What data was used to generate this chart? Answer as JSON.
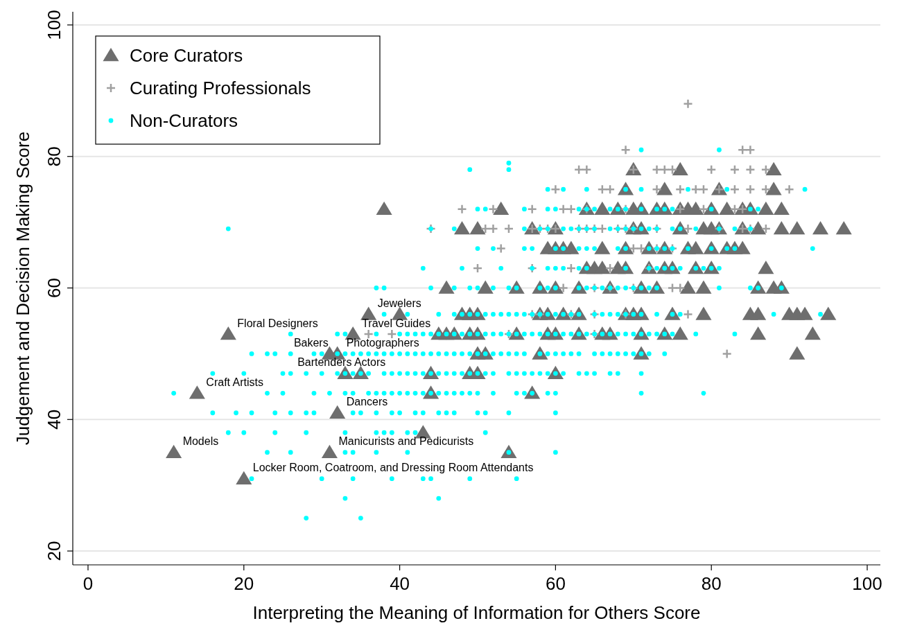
{
  "chart_data": {
    "type": "scatter",
    "xlabel": "Interpreting the Meaning of Information for Others Score",
    "ylabel": "Judgement and Decision Making Score",
    "xlim": [
      -2,
      102
    ],
    "ylim": [
      18,
      102
    ],
    "xticks": [
      0,
      20,
      40,
      60,
      80,
      100
    ],
    "yticks": [
      20,
      40,
      60,
      80,
      100
    ],
    "grid": "y",
    "legend": "top left",
    "series": [
      {
        "name": "Core Curators",
        "color": "#6e6e6e",
        "marker": "triangle",
        "x": [
          11,
          14,
          18,
          20,
          31,
          32,
          31,
          32,
          33,
          35,
          34,
          36,
          40,
          38,
          43,
          54,
          44,
          44,
          57,
          49,
          50,
          60,
          50,
          51,
          58,
          71,
          91,
          45,
          46,
          47,
          49,
          50,
          55,
          59,
          60,
          63,
          66,
          67,
          71,
          74,
          76,
          86,
          93,
          48,
          49,
          50,
          58,
          59,
          61,
          63,
          69,
          70,
          71,
          75,
          79,
          85,
          86,
          90,
          91,
          92,
          95,
          46,
          51,
          55,
          58,
          60,
          63,
          67,
          71,
          73,
          77,
          79,
          86,
          88,
          89,
          64,
          65,
          66,
          68,
          69,
          72,
          74,
          75,
          78,
          80,
          87,
          59,
          60,
          61,
          62,
          66,
          69,
          72,
          74,
          77,
          78,
          80,
          82,
          83,
          84,
          48,
          50,
          57,
          60,
          70,
          71,
          76,
          79,
          80,
          81,
          84,
          86,
          89,
          91,
          94,
          97,
          53,
          64,
          66,
          68,
          70,
          71,
          73,
          74,
          76,
          77,
          78,
          80,
          82,
          84,
          85,
          87,
          89,
          69,
          74,
          81,
          88,
          70,
          76,
          88
        ],
        "values": [
          35,
          44,
          53,
          31,
          35,
          41,
          50,
          50,
          47,
          47,
          53,
          56,
          56,
          72,
          38,
          35,
          44,
          47,
          44,
          47,
          47,
          47,
          50,
          50,
          50,
          50,
          50,
          53,
          53,
          53,
          53,
          53,
          53,
          53,
          53,
          53,
          53,
          53,
          53,
          53,
          53,
          53,
          53,
          56,
          56,
          56,
          56,
          56,
          56,
          56,
          56,
          56,
          56,
          56,
          56,
          56,
          56,
          56,
          56,
          56,
          56,
          60,
          60,
          60,
          60,
          60,
          60,
          60,
          60,
          60,
          60,
          60,
          60,
          60,
          60,
          63,
          63,
          63,
          63,
          63,
          63,
          63,
          63,
          63,
          63,
          63,
          66,
          66,
          66,
          66,
          66,
          66,
          66,
          66,
          66,
          66,
          66,
          66,
          66,
          66,
          69,
          69,
          69,
          69,
          69,
          69,
          69,
          69,
          69,
          69,
          69,
          69,
          69,
          69,
          69,
          69,
          72,
          72,
          72,
          72,
          72,
          72,
          72,
          72,
          72,
          72,
          72,
          72,
          72,
          72,
          72,
          72,
          72,
          75,
          75,
          75,
          75,
          78,
          78,
          78
        ]
      },
      {
        "name": "Curating Professionals",
        "color": "#a0a0a0",
        "marker": "cross",
        "x": [
          77,
          69,
          84,
          85,
          63,
          64,
          70,
          73,
          74,
          75,
          80,
          83,
          85,
          87,
          60,
          66,
          67,
          73,
          76,
          78,
          79,
          81,
          83,
          85,
          87,
          90,
          48,
          52,
          57,
          61,
          62,
          64,
          69,
          76,
          79,
          83,
          84,
          44,
          51,
          52,
          54,
          57,
          58,
          59,
          60,
          63,
          64,
          65,
          66,
          68,
          69,
          70,
          73,
          77,
          81,
          84,
          85,
          87,
          53,
          70,
          71,
          73,
          75,
          50,
          57,
          62,
          67,
          72,
          61,
          65,
          67,
          70,
          75,
          76,
          57,
          58,
          62,
          65,
          69,
          77,
          36,
          39,
          54,
          65,
          82
        ],
        "values": [
          88,
          81,
          81,
          81,
          78,
          78,
          78,
          78,
          78,
          78,
          78,
          78,
          78,
          78,
          75,
          75,
          75,
          75,
          75,
          75,
          75,
          75,
          75,
          75,
          75,
          75,
          72,
          72,
          72,
          72,
          72,
          72,
          72,
          72,
          72,
          72,
          72,
          69,
          69,
          69,
          69,
          69,
          69,
          69,
          69,
          69,
          69,
          69,
          69,
          69,
          69,
          69,
          69,
          69,
          69,
          69,
          69,
          69,
          66,
          66,
          66,
          66,
          66,
          63,
          63,
          63,
          63,
          63,
          60,
          60,
          60,
          60,
          60,
          60,
          56,
          56,
          56,
          56,
          56,
          56,
          53,
          53,
          53,
          53,
          50
        ]
      },
      {
        "name": "Non-Curators",
        "color": "#00ffff",
        "marker": "circle",
        "x": [
          71,
          81,
          54,
          49,
          54,
          59,
          61,
          64,
          69,
          71,
          77,
          82,
          92,
          50,
          51,
          56,
          59,
          60,
          63,
          64,
          65,
          67,
          68,
          69,
          71,
          73,
          74,
          75,
          80,
          85,
          86,
          18,
          44,
          47,
          56,
          58,
          59,
          61,
          62,
          63,
          64,
          65,
          67,
          68,
          69,
          70,
          71,
          72,
          73,
          75,
          76,
          78,
          81,
          83,
          85,
          50,
          52,
          56,
          57,
          60,
          61,
          63,
          64,
          65,
          68,
          69,
          72,
          73,
          74,
          75,
          77,
          80,
          82,
          83,
          93,
          43,
          48,
          53,
          57,
          59,
          60,
          61,
          63,
          64,
          69,
          72,
          73,
          74,
          75,
          76,
          78,
          79,
          80,
          81,
          37,
          38,
          44,
          47,
          49,
          50,
          52,
          54,
          55,
          58,
          59,
          60,
          63,
          64,
          65,
          66,
          67,
          68,
          69,
          70,
          71,
          72,
          73,
          81,
          85,
          86,
          89,
          38,
          41,
          45,
          47,
          48,
          49,
          50,
          51,
          52,
          53,
          54,
          55,
          56,
          57,
          58,
          59,
          60,
          61,
          62,
          63,
          65,
          66,
          67,
          68,
          69,
          70,
          71,
          73,
          75,
          76,
          88,
          94,
          26,
          32,
          33,
          37,
          40,
          41,
          42,
          43,
          44,
          45,
          46,
          47,
          48,
          49,
          50,
          51,
          52,
          53,
          54,
          55,
          56,
          57,
          58,
          59,
          60,
          61,
          62,
          63,
          64,
          65,
          66,
          67,
          68,
          69,
          70,
          71,
          72,
          73,
          74,
          75,
          78,
          83,
          21,
          23,
          24,
          26,
          29,
          30,
          32,
          33,
          34,
          35,
          36,
          37,
          38,
          39,
          40,
          41,
          42,
          43,
          44,
          45,
          46,
          47,
          48,
          49,
          50,
          51,
          52,
          53,
          54,
          55,
          56,
          58,
          59,
          60,
          61,
          62,
          63,
          65,
          66,
          67,
          68,
          69,
          70,
          71,
          72,
          74,
          16,
          20,
          25,
          26,
          28,
          30,
          32,
          33,
          34,
          35,
          36,
          38,
          39,
          40,
          41,
          42,
          43,
          44,
          45,
          46,
          47,
          48,
          49,
          50,
          51,
          52,
          54,
          55,
          56,
          57,
          58,
          59,
          60,
          61,
          63,
          64,
          65,
          67,
          68,
          71,
          11,
          23,
          25,
          29,
          31,
          33,
          34,
          36,
          37,
          38,
          39,
          40,
          41,
          42,
          43,
          44,
          45,
          46,
          47,
          48,
          49,
          50,
          52,
          55,
          56,
          57,
          59,
          60,
          71,
          79,
          16,
          19,
          21,
          24,
          26,
          28,
          29,
          34,
          35,
          37,
          39,
          40,
          42,
          43,
          45,
          46,
          47,
          50,
          51,
          54,
          60,
          18,
          20,
          24,
          28,
          33,
          37,
          38,
          39,
          41,
          42,
          51,
          23,
          26,
          33,
          34,
          37,
          41,
          54,
          60,
          21,
          30,
          34,
          39,
          43,
          44,
          49,
          55,
          33,
          45,
          28,
          35
        ],
        "values": [
          81,
          81,
          79,
          78,
          78,
          75,
          75,
          75,
          75,
          75,
          75,
          75,
          75,
          72,
          72,
          72,
          72,
          72,
          72,
          72,
          72,
          72,
          72,
          72,
          72,
          72,
          72,
          72,
          72,
          72,
          72,
          69,
          69,
          69,
          69,
          69,
          69,
          69,
          69,
          69,
          69,
          69,
          69,
          69,
          69,
          69,
          69,
          69,
          69,
          69,
          69,
          69,
          69,
          69,
          69,
          66,
          66,
          66,
          66,
          66,
          66,
          66,
          66,
          66,
          66,
          66,
          66,
          66,
          66,
          66,
          66,
          66,
          66,
          66,
          66,
          63,
          63,
          63,
          63,
          63,
          63,
          63,
          63,
          63,
          63,
          63,
          63,
          63,
          63,
          63,
          63,
          63,
          63,
          63,
          60,
          60,
          60,
          60,
          60,
          60,
          60,
          60,
          60,
          60,
          60,
          60,
          60,
          60,
          60,
          60,
          60,
          60,
          60,
          60,
          60,
          60,
          60,
          60,
          60,
          60,
          60,
          56,
          56,
          56,
          56,
          56,
          56,
          56,
          56,
          56,
          56,
          56,
          56,
          56,
          56,
          56,
          56,
          56,
          56,
          56,
          56,
          56,
          56,
          56,
          56,
          56,
          56,
          56,
          56,
          56,
          56,
          56,
          56,
          53,
          53,
          53,
          53,
          53,
          53,
          53,
          53,
          53,
          53,
          53,
          53,
          53,
          53,
          53,
          53,
          53,
          53,
          53,
          53,
          53,
          53,
          53,
          53,
          53,
          53,
          53,
          53,
          53,
          53,
          53,
          53,
          53,
          53,
          53,
          53,
          53,
          53,
          53,
          53,
          53,
          53,
          50,
          50,
          50,
          50,
          50,
          50,
          50,
          50,
          50,
          50,
          50,
          50,
          50,
          50,
          50,
          50,
          50,
          50,
          50,
          50,
          50,
          50,
          50,
          50,
          50,
          50,
          50,
          50,
          50,
          50,
          50,
          50,
          50,
          50,
          50,
          50,
          50,
          50,
          50,
          50,
          50,
          50,
          50,
          50,
          50,
          50,
          47,
          47,
          47,
          47,
          47,
          47,
          47,
          47,
          47,
          47,
          47,
          47,
          47,
          47,
          47,
          47,
          47,
          47,
          47,
          47,
          47,
          47,
          47,
          47,
          47,
          47,
          47,
          47,
          47,
          47,
          47,
          47,
          47,
          47,
          47,
          47,
          47,
          47,
          47,
          47,
          44,
          44,
          44,
          44,
          44,
          44,
          44,
          44,
          44,
          44,
          44,
          44,
          44,
          44,
          44,
          44,
          44,
          44,
          44,
          44,
          44,
          44,
          44,
          44,
          44,
          44,
          44,
          44,
          44,
          44,
          41,
          41,
          41,
          41,
          41,
          41,
          41,
          41,
          41,
          41,
          41,
          41,
          41,
          41,
          41,
          41,
          41,
          41,
          41,
          41,
          41,
          38,
          38,
          38,
          38,
          38,
          38,
          38,
          38,
          38,
          38,
          38,
          35,
          35,
          35,
          35,
          35,
          35,
          35,
          35,
          31,
          31,
          31,
          31,
          31,
          31,
          31,
          31,
          28,
          28,
          25,
          25
        ]
      }
    ],
    "annotations": [
      {
        "text": "Models",
        "x": 11,
        "y": 35
      },
      {
        "text": "Craft Artists",
        "x": 14,
        "y": 44
      },
      {
        "text": "Floral Designers",
        "x": 18,
        "y": 53
      },
      {
        "text": "Locker Room, Coatroom, and Dressing Room Attendants",
        "x": 20,
        "y": 31
      },
      {
        "text": "Manicurists and Pedicurists",
        "x": 31,
        "y": 35
      },
      {
        "text": "Dancers",
        "x": 32,
        "y": 41
      },
      {
        "text": "Photographers",
        "x": 32,
        "y": 50
      },
      {
        "text": "Bakers",
        "x": 32,
        "y": 50
      },
      {
        "text": "Actors",
        "x": 33,
        "y": 47
      },
      {
        "text": "Bartenders",
        "x": 35,
        "y": 47
      },
      {
        "text": "Travel Guides",
        "x": 34,
        "y": 53
      },
      {
        "text": "Jewelers",
        "x": 36,
        "y": 56
      }
    ]
  }
}
